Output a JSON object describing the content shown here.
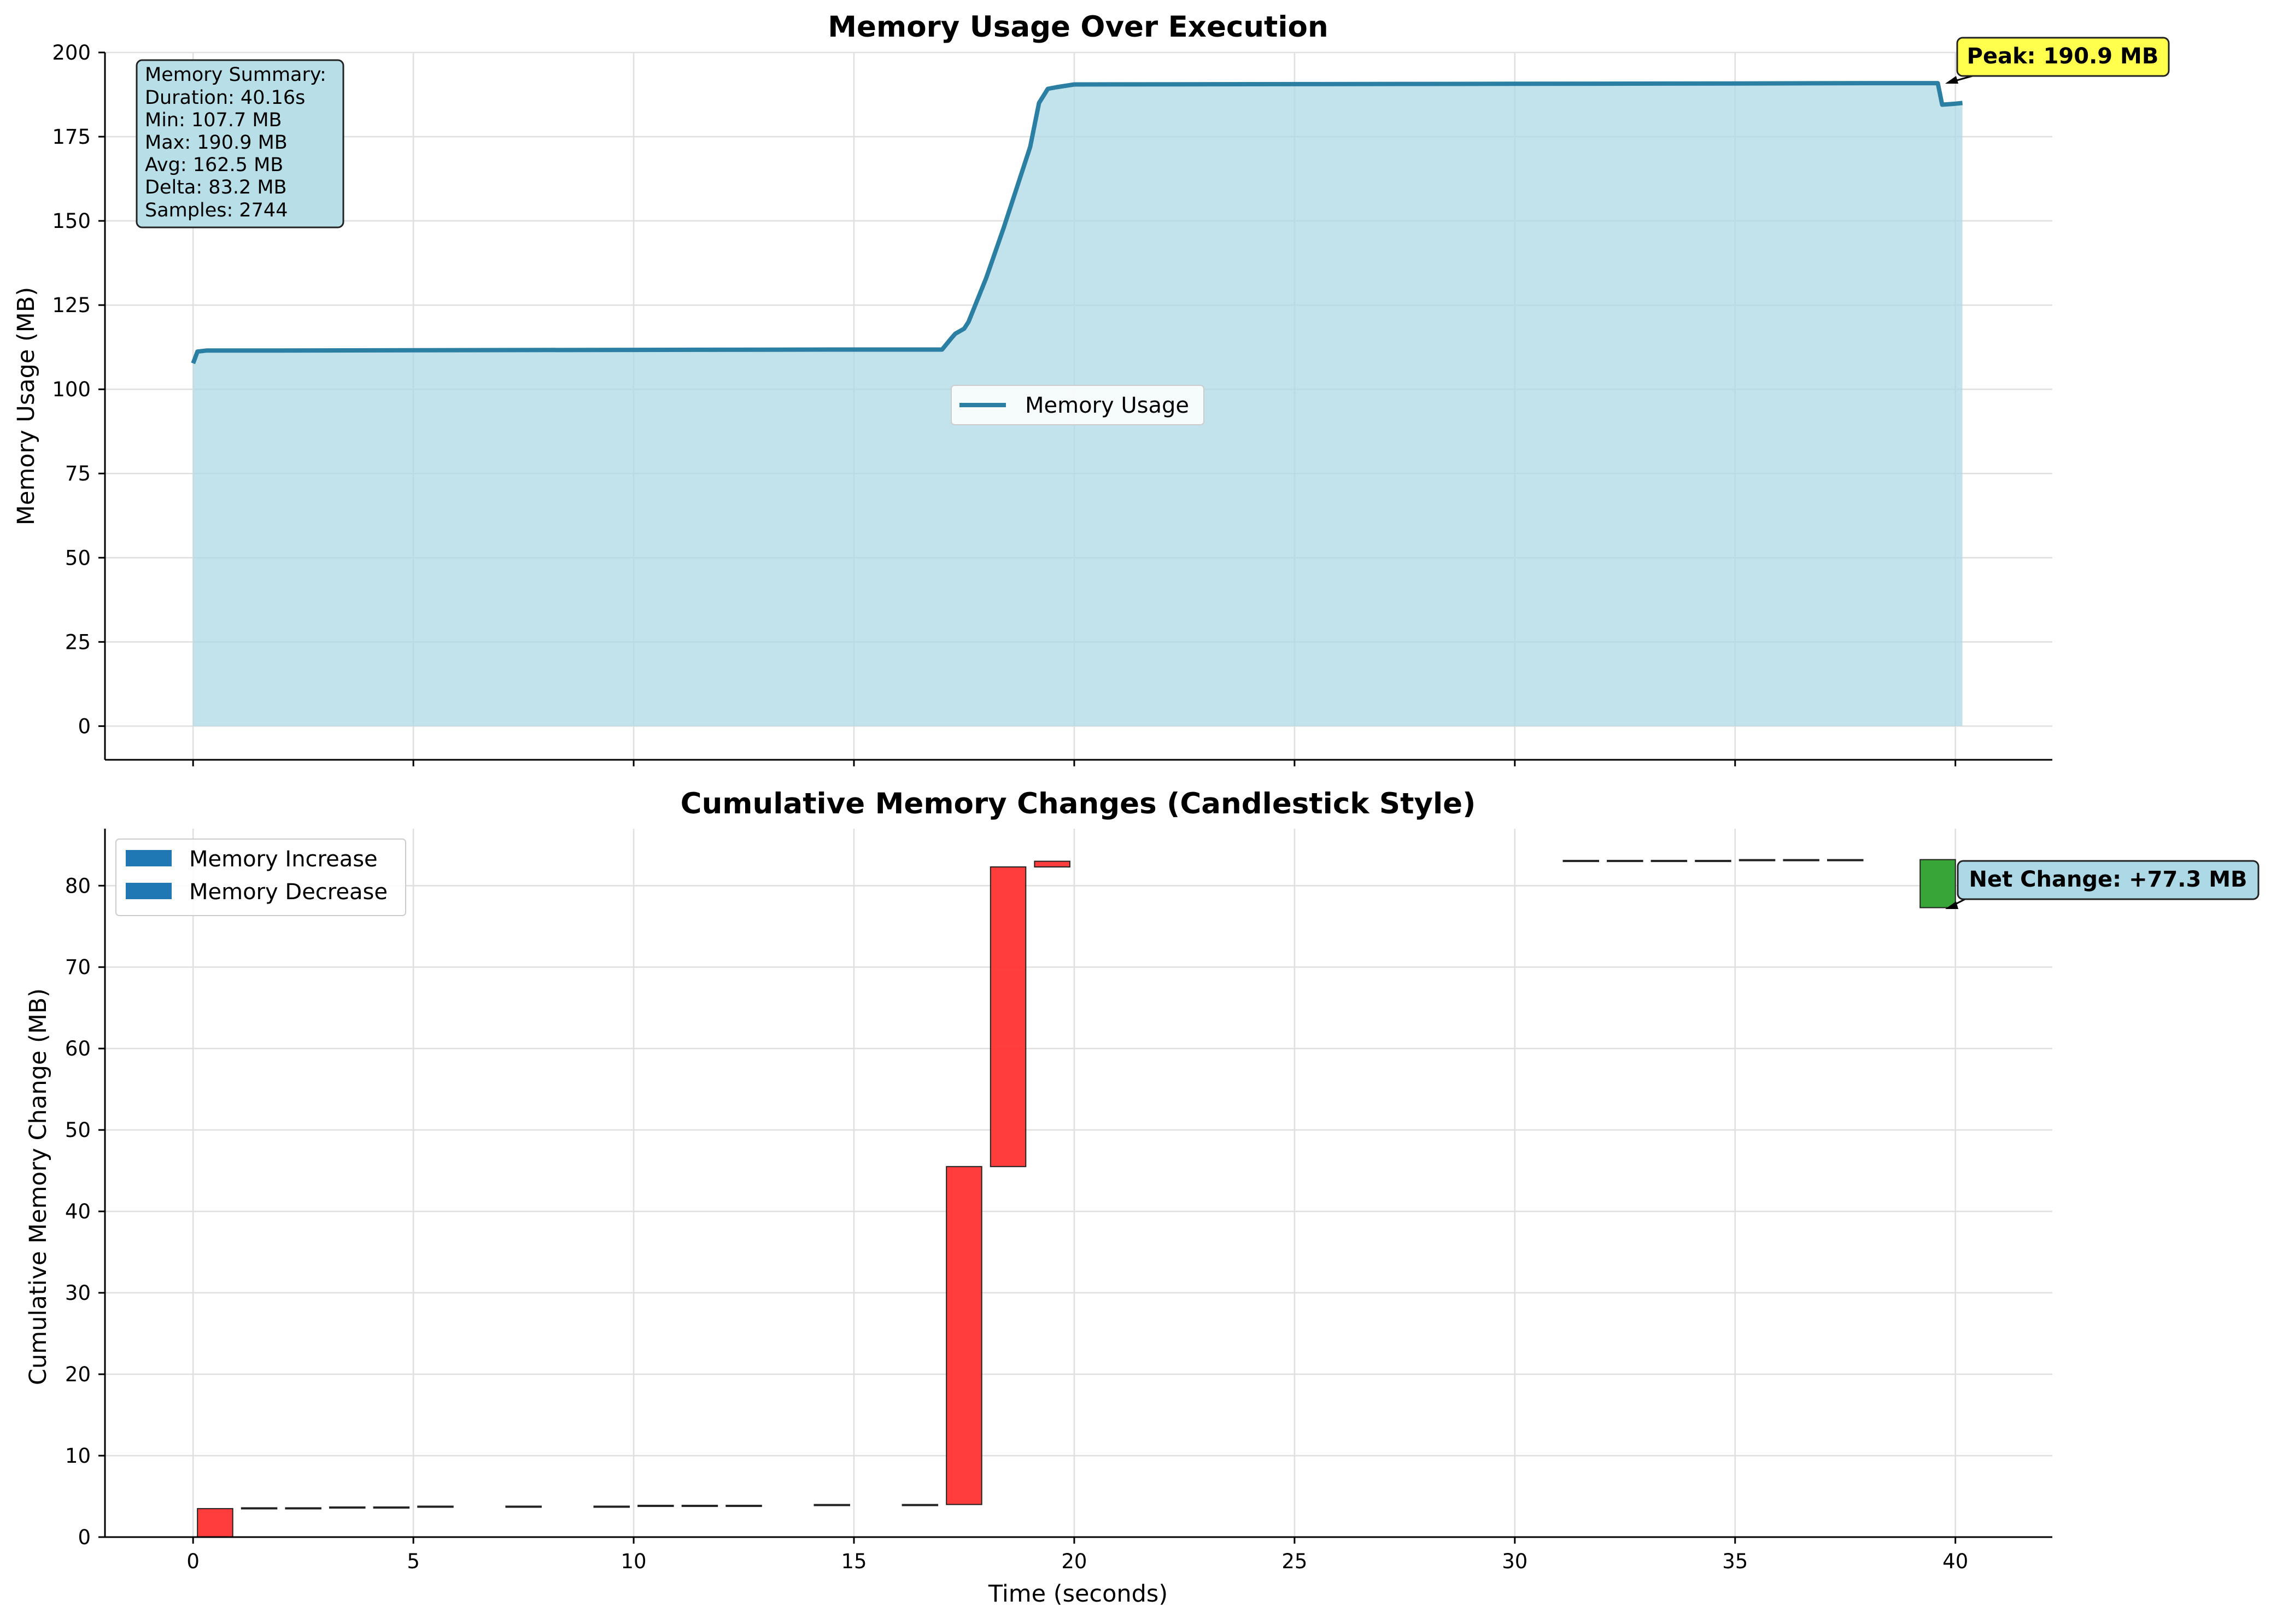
{
  "chart_data": [
    {
      "type": "area",
      "title": "Memory Usage Over Execution",
      "xlabel": "",
      "ylabel": "Memory Usage (MB)",
      "xlim": [
        -2,
        42.2
      ],
      "ylim": [
        -10,
        200
      ],
      "yticks": [
        0,
        25,
        50,
        75,
        100,
        125,
        150,
        175,
        200
      ],
      "xticks": [
        0,
        5,
        10,
        15,
        20,
        25,
        30,
        35,
        40
      ],
      "grid": true,
      "legend_position": "center",
      "line_color": "#2b7fa3",
      "fill_color": "#add8e6",
      "series": [
        {
          "name": "Memory Usage",
          "x": [
            0,
            0.1,
            0.3,
            2,
            5,
            10,
            15,
            17.0,
            17.2,
            17.3,
            17.5,
            17.6,
            18.0,
            18.4,
            18.7,
            19.0,
            19.2,
            19.4,
            19.6,
            20,
            25,
            30,
            35,
            38,
            39.0,
            39.5,
            39.6,
            39.7,
            40.0,
            40.16
          ],
          "values": [
            107.7,
            111.2,
            111.5,
            111.5,
            111.6,
            111.7,
            111.8,
            111.8,
            115.0,
            116.5,
            118.0,
            120.0,
            133.0,
            148.0,
            160.0,
            172.0,
            185.0,
            189.2,
            189.7,
            190.5,
            190.6,
            190.7,
            190.8,
            190.9,
            190.9,
            190.9,
            190.9,
            184.5,
            184.8,
            185.0
          ]
        }
      ],
      "annotations": {
        "peak_label": "Peak: 190.9 MB",
        "peak_x": 39.7,
        "peak_y": 190.9,
        "peak_box_color": "#ffff4d"
      },
      "summary": {
        "heading": "Memory Summary:",
        "lines": [
          "Duration: 40.16s",
          "Min: 107.7 MB",
          "Max: 190.9 MB",
          "Avg: 162.5 MB",
          "Delta: 83.2 MB",
          "Samples: 2744"
        ],
        "box_color": "#b8dfe8"
      }
    },
    {
      "type": "bar",
      "title": "Cumulative Memory Changes (Candlestick Style)",
      "xlabel": "Time (seconds)",
      "ylabel": "Cumulative Memory Change (MB)",
      "xlim": [
        -2,
        42.2
      ],
      "ylim": [
        0,
        87
      ],
      "yticks": [
        0,
        10,
        20,
        30,
        40,
        50,
        60,
        70,
        80
      ],
      "xticks": [
        0,
        5,
        10,
        15,
        20,
        25,
        30,
        35,
        40
      ],
      "grid": true,
      "legend_position": "top-left",
      "legend_color": "#1f77b4",
      "increase_color": "#ff3333",
      "decrease_color": "#2ca02c",
      "series": [
        {
          "name": "Memory Increase"
        },
        {
          "name": "Memory Decrease"
        }
      ],
      "candles": [
        {
          "x": 0.5,
          "open": 0.0,
          "close": 3.5
        },
        {
          "x": 1.5,
          "open": 3.5,
          "close": 3.6
        },
        {
          "x": 2.5,
          "open": 3.6,
          "close": 3.6
        },
        {
          "x": 3.5,
          "open": 3.6,
          "close": 3.7
        },
        {
          "x": 4.5,
          "open": 3.7,
          "close": 3.7
        },
        {
          "x": 5.5,
          "open": 3.7,
          "close": 3.8
        },
        {
          "x": 7.5,
          "open": 3.8,
          "close": 3.8
        },
        {
          "x": 9.5,
          "open": 3.8,
          "close": 3.8
        },
        {
          "x": 10.5,
          "open": 3.8,
          "close": 3.9
        },
        {
          "x": 11.5,
          "open": 3.9,
          "close": 3.9
        },
        {
          "x": 12.5,
          "open": 3.9,
          "close": 3.9
        },
        {
          "x": 14.5,
          "open": 3.9,
          "close": 4.0
        },
        {
          "x": 16.5,
          "open": 4.0,
          "close": 4.0
        },
        {
          "x": 17.5,
          "open": 4.0,
          "close": 45.5
        },
        {
          "x": 18.5,
          "open": 45.5,
          "close": 82.3
        },
        {
          "x": 19.5,
          "open": 82.3,
          "close": 83.0
        },
        {
          "x": 31.5,
          "open": 83.0,
          "close": 83.1
        },
        {
          "x": 32.5,
          "open": 83.1,
          "close": 83.1
        },
        {
          "x": 33.5,
          "open": 83.1,
          "close": 83.1
        },
        {
          "x": 34.5,
          "open": 83.1,
          "close": 83.1
        },
        {
          "x": 35.5,
          "open": 83.1,
          "close": 83.2
        },
        {
          "x": 36.5,
          "open": 83.2,
          "close": 83.2
        },
        {
          "x": 37.5,
          "open": 83.2,
          "close": 83.2
        },
        {
          "x": 39.6,
          "open": 83.2,
          "close": 77.3
        }
      ],
      "annotations": {
        "net_label": "Net Change: +77.3 MB",
        "net_x": 39.7,
        "net_y": 77.3,
        "net_box_color": "#add8e6"
      }
    }
  ]
}
